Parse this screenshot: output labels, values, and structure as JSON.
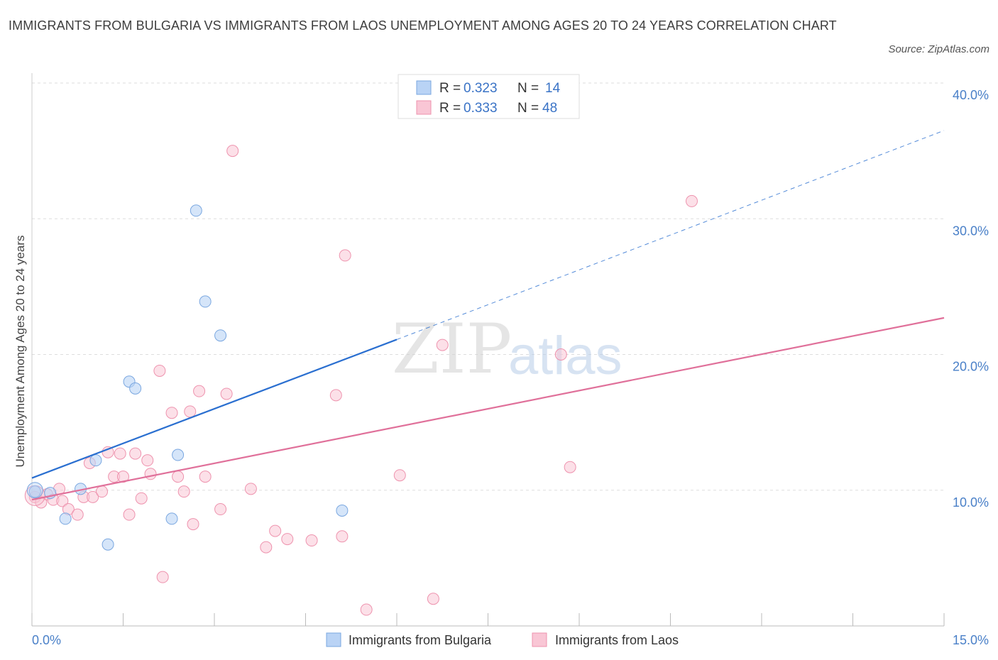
{
  "title": "IMMIGRANTS FROM BULGARIA VS IMMIGRANTS FROM LAOS UNEMPLOYMENT AMONG AGES 20 TO 24 YEARS CORRELATION CHART",
  "source": "Source: ZipAtlas.com",
  "watermark": {
    "zip": "ZIP",
    "atlas": "atlas"
  },
  "colors": {
    "bulgaria_fill": "#b9d3f5",
    "bulgaria_stroke": "#7aa7e0",
    "bulgaria_line": "#2a6fd0",
    "laos_fill": "#f9c6d5",
    "laos_stroke": "#ee93ae",
    "laos_line": "#e0709a",
    "axis_text": "#4a80c8",
    "grid": "#dddddd"
  },
  "legend": {
    "rows": [
      {
        "r_label": "R = ",
        "r_value": "0.323",
        "n_label": "N = ",
        "n_value": "14"
      },
      {
        "r_label": "R = ",
        "r_value": "0.333",
        "n_label": "N = ",
        "n_value": "48"
      }
    ]
  },
  "bottom_legend": [
    "Immigrants from Bulgaria",
    "Immigrants from Laos"
  ],
  "chart_data": {
    "type": "scatter",
    "title": "IMMIGRANTS FROM BULGARIA VS IMMIGRANTS FROM LAOS UNEMPLOYMENT AMONG AGES 20 TO 24 YEARS CORRELATION CHART",
    "xlabel": "",
    "ylabel": "Unemployment Among Ages 20 to 24 years",
    "xlim": [
      0,
      15
    ],
    "ylim": [
      0,
      40
    ],
    "x_tick_labels": [
      "0.0%",
      "15.0%"
    ],
    "y_ticks": [
      10,
      20,
      30,
      40
    ],
    "y_tick_labels": [
      "10.0%",
      "20.0%",
      "30.0%",
      "40.0%"
    ],
    "series": [
      {
        "name": "Immigrants from Bulgaria",
        "R": 0.323,
        "N": 14,
        "points": [
          [
            0.05,
            9.9
          ],
          [
            0.3,
            9.8
          ],
          [
            0.55,
            7.9
          ],
          [
            0.8,
            10.1
          ],
          [
            1.05,
            12.2
          ],
          [
            1.25,
            6.0
          ],
          [
            1.6,
            18.0
          ],
          [
            1.7,
            17.5
          ],
          [
            2.3,
            7.9
          ],
          [
            2.4,
            12.6
          ],
          [
            2.7,
            30.6
          ],
          [
            2.85,
            23.9
          ],
          [
            3.1,
            21.4
          ],
          [
            5.1,
            8.5
          ]
        ],
        "trend": {
          "x": [
            0,
            6.0
          ],
          "y": [
            10.9,
            21.1
          ],
          "dashed_extension": {
            "x": [
              6.0,
              15.0
            ],
            "y": [
              21.1,
              36.5
            ]
          }
        }
      },
      {
        "name": "Immigrants from Laos",
        "R": 0.333,
        "N": 48,
        "points": [
          [
            0.05,
            9.5
          ],
          [
            0.15,
            9.1
          ],
          [
            0.25,
            9.7
          ],
          [
            0.35,
            9.3
          ],
          [
            0.45,
            10.1
          ],
          [
            0.5,
            9.2
          ],
          [
            0.6,
            8.6
          ],
          [
            0.75,
            8.2
          ],
          [
            0.85,
            9.5
          ],
          [
            0.95,
            12.0
          ],
          [
            1.0,
            9.5
          ],
          [
            1.15,
            9.9
          ],
          [
            1.25,
            12.8
          ],
          [
            1.35,
            11.0
          ],
          [
            1.45,
            12.7
          ],
          [
            1.5,
            11.0
          ],
          [
            1.6,
            8.2
          ],
          [
            1.7,
            12.7
          ],
          [
            1.8,
            9.4
          ],
          [
            1.9,
            12.2
          ],
          [
            1.95,
            11.2
          ],
          [
            2.1,
            18.8
          ],
          [
            2.15,
            3.6
          ],
          [
            2.3,
            15.7
          ],
          [
            2.4,
            11.0
          ],
          [
            2.5,
            9.9
          ],
          [
            2.6,
            15.8
          ],
          [
            2.65,
            7.5
          ],
          [
            2.75,
            17.3
          ],
          [
            2.85,
            11.0
          ],
          [
            3.1,
            8.6
          ],
          [
            3.2,
            17.1
          ],
          [
            3.3,
            35.0
          ],
          [
            3.6,
            10.1
          ],
          [
            3.85,
            5.8
          ],
          [
            4.0,
            7.0
          ],
          [
            4.2,
            6.4
          ],
          [
            4.6,
            6.3
          ],
          [
            5.0,
            17.0
          ],
          [
            5.1,
            6.6
          ],
          [
            5.15,
            27.3
          ],
          [
            5.5,
            1.2
          ],
          [
            6.05,
            11.1
          ],
          [
            6.6,
            2.0
          ],
          [
            6.75,
            20.7
          ],
          [
            8.7,
            20.0
          ],
          [
            8.85,
            11.7
          ],
          [
            10.85,
            31.3
          ]
        ],
        "trend": {
          "x": [
            0,
            15.0
          ],
          "y": [
            9.3,
            22.7
          ]
        }
      }
    ]
  }
}
